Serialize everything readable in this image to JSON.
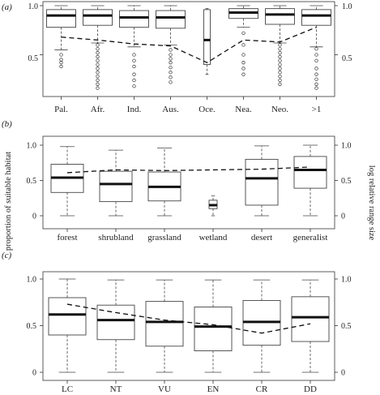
{
  "chart_data": [
    {
      "type": "box",
      "panel_label": "(a)",
      "categories": [
        "Pal.",
        "Afr.",
        "Ind.",
        "Aus.",
        "Oce.",
        "Nea.",
        "Neo.",
        ">1"
      ],
      "left_axis": {
        "ylim": [
          0,
          1
        ],
        "ticks": [
          "0",
          "0.5",
          "1.0"
        ]
      },
      "right_axis": {
        "ylim": [
          0,
          1
        ],
        "ticks": [
          "0",
          "0.5",
          "1.0"
        ]
      },
      "boxes": [
        {
          "whisker_low": 0.55,
          "q1": 0.78,
          "median": 0.9,
          "q3": 0.96,
          "whisker_high": 1.0,
          "outliers": [
            0.5,
            0.45,
            0.42,
            0.38
          ]
        },
        {
          "whisker_low": 0.62,
          "q1": 0.8,
          "median": 0.9,
          "q3": 0.96,
          "whisker_high": 1.0,
          "outliers": [
            0.6,
            0.56,
            0.52,
            0.48,
            0.44,
            0.4,
            0.36,
            0.32,
            0.28,
            0.24,
            0.2,
            0.16
          ]
        },
        {
          "whisker_low": 0.58,
          "q1": 0.78,
          "median": 0.88,
          "q3": 0.95,
          "whisker_high": 1.0,
          "outliers": [
            0.5,
            0.44,
            0.38,
            0.3,
            0.24,
            0.18
          ]
        },
        {
          "whisker_low": 0.6,
          "q1": 0.77,
          "median": 0.88,
          "q3": 0.95,
          "whisker_high": 1.0,
          "outliers": [
            0.55,
            0.5,
            0.46,
            0.42,
            0.37,
            0.32,
            0.27,
            0.22
          ]
        },
        {
          "whisker_low": 0.3,
          "q1": 0.4,
          "median": 0.65,
          "q3": 0.96,
          "whisker_high": 0.97,
          "outliers": []
        },
        {
          "whisker_low": 0.78,
          "q1": 0.87,
          "median": 0.93,
          "q3": 0.97,
          "whisker_high": 1.0,
          "outliers": [
            0.72,
            0.6,
            0.5,
            0.42,
            0.36,
            0.3
          ]
        },
        {
          "whisker_low": 0.62,
          "q1": 0.81,
          "median": 0.91,
          "q3": 0.97,
          "whisker_high": 1.0,
          "outliers": [
            0.6,
            0.56,
            0.52,
            0.48,
            0.44,
            0.4,
            0.36,
            0.32,
            0.28,
            0.24,
            0.2
          ]
        },
        {
          "whisker_low": 0.58,
          "q1": 0.8,
          "median": 0.9,
          "q3": 0.96,
          "whisker_high": 1.0,
          "outliers": [
            0.56,
            0.5,
            0.44,
            0.36,
            0.3,
            0.25,
            0.2,
            0.16
          ]
        }
      ],
      "dashed_line": [
        0.68,
        0.65,
        0.61,
        0.59,
        0.42,
        0.65,
        0.63,
        0.78
      ]
    },
    {
      "type": "box",
      "panel_label": "(b)",
      "categories": [
        "forest",
        "shrubland",
        "grassland",
        "wetland",
        "desert",
        "generalist"
      ],
      "left_axis": {
        "label": "proportion of suitable habitat",
        "ylim": [
          0,
          1
        ],
        "ticks": [
          "0",
          "0.5",
          "1.0"
        ]
      },
      "right_axis": {
        "label": "log relative range size",
        "ylim": [
          0,
          1
        ],
        "ticks": [
          "0",
          "0.5",
          "1.0"
        ]
      },
      "boxes": [
        {
          "whisker_low": 0.0,
          "q1": 0.33,
          "median": 0.54,
          "q3": 0.73,
          "whisker_high": 0.98,
          "outliers": []
        },
        {
          "whisker_low": 0.0,
          "q1": 0.2,
          "median": 0.45,
          "q3": 0.63,
          "whisker_high": 0.93,
          "outliers": []
        },
        {
          "whisker_low": 0.0,
          "q1": 0.21,
          "median": 0.41,
          "q3": 0.62,
          "whisker_high": 0.96,
          "outliers": []
        },
        {
          "whisker_low": 0.0,
          "q1": 0.1,
          "median": 0.15,
          "q3": 0.22,
          "whisker_high": 0.28,
          "outliers": []
        },
        {
          "whisker_low": 0.0,
          "q1": 0.15,
          "median": 0.53,
          "q3": 0.8,
          "whisker_high": 0.99,
          "outliers": []
        },
        {
          "whisker_low": 0.0,
          "q1": 0.39,
          "median": 0.65,
          "q3": 0.84,
          "whisker_high": 1.0,
          "outliers": []
        }
      ],
      "dashed_line": [
        0.61,
        0.65,
        0.64,
        0.65,
        0.66,
        0.69
      ]
    },
    {
      "type": "box",
      "panel_label": "(c)",
      "categories": [
        "LC",
        "NT",
        "VU",
        "EN",
        "CR",
        "DD"
      ],
      "left_axis": {
        "ylim": [
          0,
          1
        ],
        "ticks": [
          "0",
          "0.5",
          "1.0"
        ]
      },
      "right_axis": {
        "ylim": [
          0,
          1
        ],
        "ticks": [
          "0",
          "0.5",
          "1.0"
        ]
      },
      "boxes": [
        {
          "whisker_low": 0.0,
          "q1": 0.4,
          "median": 0.62,
          "q3": 0.8,
          "whisker_high": 1.0,
          "outliers": []
        },
        {
          "whisker_low": 0.0,
          "q1": 0.35,
          "median": 0.56,
          "q3": 0.72,
          "whisker_high": 0.99,
          "outliers": []
        },
        {
          "whisker_low": 0.0,
          "q1": 0.28,
          "median": 0.54,
          "q3": 0.76,
          "whisker_high": 0.99,
          "outliers": []
        },
        {
          "whisker_low": 0.0,
          "q1": 0.23,
          "median": 0.49,
          "q3": 0.7,
          "whisker_high": 0.99,
          "outliers": []
        },
        {
          "whisker_low": 0.0,
          "q1": 0.29,
          "median": 0.54,
          "q3": 0.77,
          "whisker_high": 0.99,
          "outliers": []
        },
        {
          "whisker_low": 0.0,
          "q1": 0.33,
          "median": 0.59,
          "q3": 0.81,
          "whisker_high": 0.99,
          "outliers": []
        }
      ],
      "dashed_line": [
        0.73,
        0.64,
        0.56,
        0.51,
        0.42,
        0.52
      ]
    }
  ]
}
